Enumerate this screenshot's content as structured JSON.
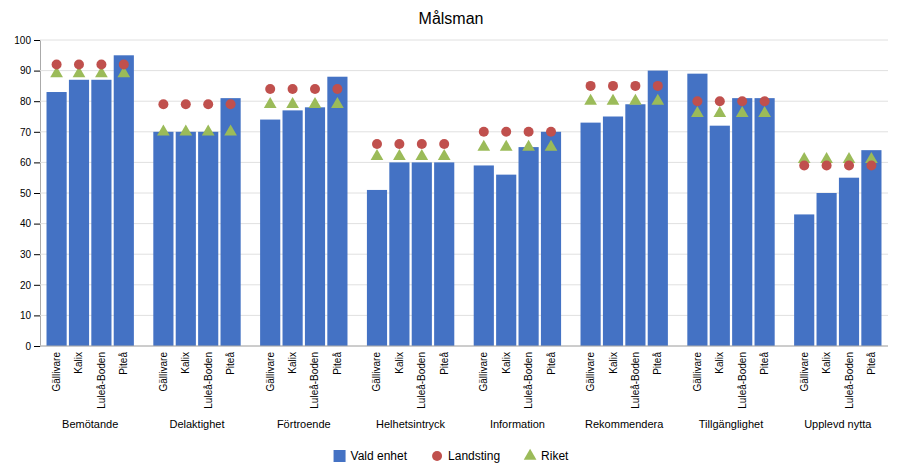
{
  "chart_data": {
    "type": "bar",
    "title": "Målsman",
    "categories": [
      "Bemötande",
      "Delaktighet",
      "Förtroende",
      "Helhetsintryck",
      "Information",
      "Rekommendera",
      "Tillgänglighet",
      "Upplevd nytta"
    ],
    "subcategories": [
      "Gällivare",
      "Kalix",
      "Luleå-Boden",
      "Piteå"
    ],
    "series": [
      {
        "name": "Vald enhet",
        "type": "bar",
        "color": "#4472C4",
        "values": [
          [
            83,
            87,
            87,
            95
          ],
          [
            70,
            70,
            70,
            81
          ],
          [
            74,
            77,
            78,
            88
          ],
          [
            51,
            60,
            60,
            60
          ],
          [
            59,
            56,
            65,
            70
          ],
          [
            73,
            75,
            79,
            90
          ],
          [
            89,
            72,
            81,
            81
          ],
          [
            43,
            50,
            55,
            64
          ]
        ]
      },
      {
        "name": "Landsting",
        "type": "scatter",
        "marker": "circle",
        "color": "#C0504D",
        "values": [
          [
            92,
            92,
            92,
            92
          ],
          [
            79,
            79,
            79,
            79
          ],
          [
            84,
            84,
            84,
            84
          ],
          [
            66,
            66,
            66,
            66
          ],
          [
            70,
            70,
            70,
            70
          ],
          [
            85,
            85,
            85,
            85
          ],
          [
            80,
            80,
            80,
            80
          ],
          [
            59,
            59,
            59,
            59
          ]
        ]
      },
      {
        "name": "Riket",
        "type": "scatter",
        "marker": "triangle",
        "color": "#9BBB59",
        "values": [
          [
            89,
            89,
            89,
            89
          ],
          [
            70,
            70,
            70,
            70
          ],
          [
            79,
            79,
            79,
            79
          ],
          [
            62,
            62,
            62,
            62
          ],
          [
            65,
            65,
            65,
            65
          ],
          [
            80,
            80,
            80,
            80
          ],
          [
            76,
            76,
            76,
            76
          ],
          [
            61,
            61,
            61,
            61
          ]
        ]
      }
    ],
    "ylim": [
      0,
      100
    ],
    "yticks": [
      0,
      10,
      20,
      30,
      40,
      50,
      60,
      70,
      80,
      90,
      100
    ],
    "grid": true
  }
}
